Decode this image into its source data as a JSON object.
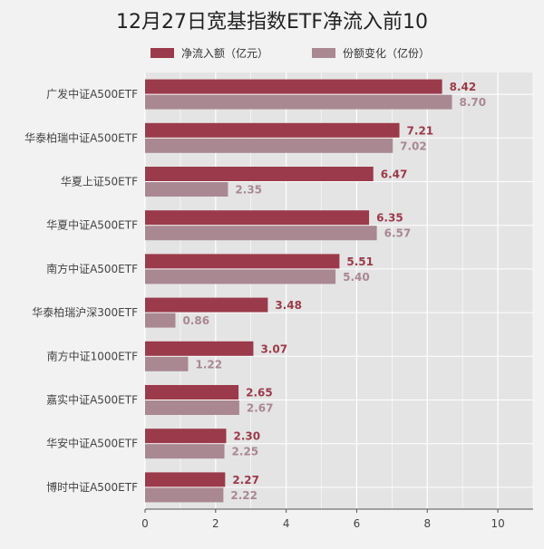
{
  "chart_data": {
    "type": "bar",
    "orientation": "horizontal",
    "title": "12月27日宽基指数ETF净流入前10",
    "categories": [
      "广发中证A500ETF",
      "华泰柏瑞中证A500ETF",
      "华夏上证50ETF",
      "华夏中证A500ETF",
      "南方中证A500ETF",
      "华泰柏瑞沪深300ETF",
      "南方中证1000ETF",
      "嘉实中证A500ETF",
      "华安中证A500ETF",
      "博时中证A500ETF"
    ],
    "series": [
      {
        "name": "净流入额（亿元）",
        "color": "#9b3a4a",
        "values": [
          8.42,
          7.21,
          6.47,
          6.35,
          5.51,
          3.48,
          3.07,
          2.65,
          2.3,
          2.27
        ],
        "labels": [
          "8.42",
          "7.21",
          "6.47",
          "6.35",
          "5.51",
          "3.48",
          "3.07",
          "2.65",
          "2.30",
          "2.27"
        ]
      },
      {
        "name": "份额变化（亿份）",
        "color": "#a98892",
        "values": [
          8.7,
          7.02,
          2.35,
          6.57,
          5.4,
          0.86,
          1.22,
          2.67,
          2.25,
          2.22
        ],
        "labels": [
          "8.70",
          "7.02",
          "2.35",
          "6.57",
          "5.40",
          "0.86",
          "1.22",
          "2.67",
          "2.25",
          "2.22"
        ]
      }
    ],
    "xlim": [
      0,
      11
    ],
    "xticks": [
      "0",
      "2",
      "4",
      "6",
      "8",
      "10"
    ],
    "xtick_values": [
      0,
      2,
      4,
      6,
      8,
      10
    ],
    "grid": true,
    "legend_position": "top"
  }
}
